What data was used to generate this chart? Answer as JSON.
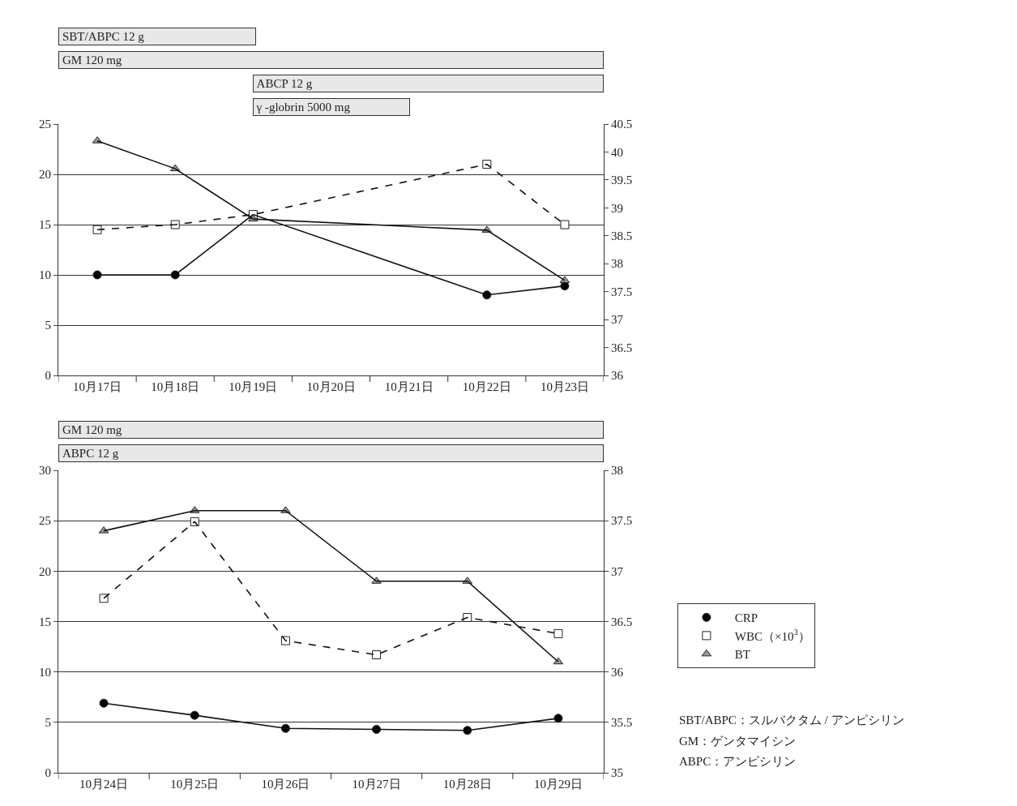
{
  "chart_data": [
    {
      "type": "line",
      "categories": [
        "10月17日",
        "10月18日",
        "10月19日",
        "10月20日",
        "10月21日",
        "10月22日",
        "10月23日"
      ],
      "series": [
        {
          "color": "#000000",
          "marker": "circle",
          "line_style": "solid",
          "values": [
            10,
            10,
            16,
            null,
            null,
            8,
            8.9
          ]
        },
        {
          "color": "#ffffff",
          "marker": "square",
          "line_style": "dashed",
          "values": [
            14.5,
            15,
            16,
            null,
            null,
            21,
            15
          ]
        },
        {
          "color": "#999999",
          "marker": "triangle",
          "line_style": "solid",
          "axis": "y2",
          "values": [
            40.2,
            39.7,
            38.8,
            null,
            null,
            38.6,
            37.7
          ]
        }
      ],
      "ylim": [
        0,
        25
      ],
      "yticks": [
        0,
        5,
        10,
        15,
        20,
        25
      ],
      "y2lim": [
        36,
        40.5
      ],
      "y2ticks": [
        36,
        36.5,
        37,
        37.5,
        38,
        38.5,
        39,
        39.5,
        40,
        40.5
      ],
      "grid": "y",
      "legend": false,
      "annotations": [
        "SBT/ABPC 12 g",
        "GM 120 mg",
        "ABCP 12 g",
        "γ -globrin 5000 mg"
      ]
    },
    {
      "type": "line",
      "categories": [
        "10月24日",
        "10月25日",
        "10月26日",
        "10月27日",
        "10月28日",
        "10月29日"
      ],
      "series": [
        {
          "name": "CRP",
          "color": "#000000",
          "marker": "circle",
          "line_style": "solid",
          "values": [
            6.9,
            5.7,
            4.4,
            4.3,
            4.2,
            5.4
          ]
        },
        {
          "name": "WBC（×10$^{3}$）",
          "color": "#ffffff",
          "marker": "square",
          "line_style": "dashed",
          "values": [
            17.3,
            24.9,
            13.1,
            11.7,
            15.4,
            13.8
          ]
        },
        {
          "name": "BT",
          "color": "#999999",
          "marker": "triangle",
          "line_style": "solid",
          "axis": "y2",
          "values": [
            37.4,
            37.6,
            37.6,
            36.9,
            36.9,
            36.1
          ]
        }
      ],
      "ylim": [
        0,
        30
      ],
      "yticks": [
        0,
        5,
        10,
        15,
        20,
        25,
        30
      ],
      "y2lim": [
        35,
        38
      ],
      "y2ticks": [
        35,
        35.5,
        36,
        36.5,
        37,
        37.5,
        38
      ],
      "grid": "y",
      "legend": "right",
      "annotations": [
        "GM 120 mg",
        "ABPC 12 g",
        "SBT/ABPC：スルバクタム / アンピシリン",
        "GM：ゲンタマイシン",
        "ABPC：アンピシリン"
      ]
    }
  ]
}
